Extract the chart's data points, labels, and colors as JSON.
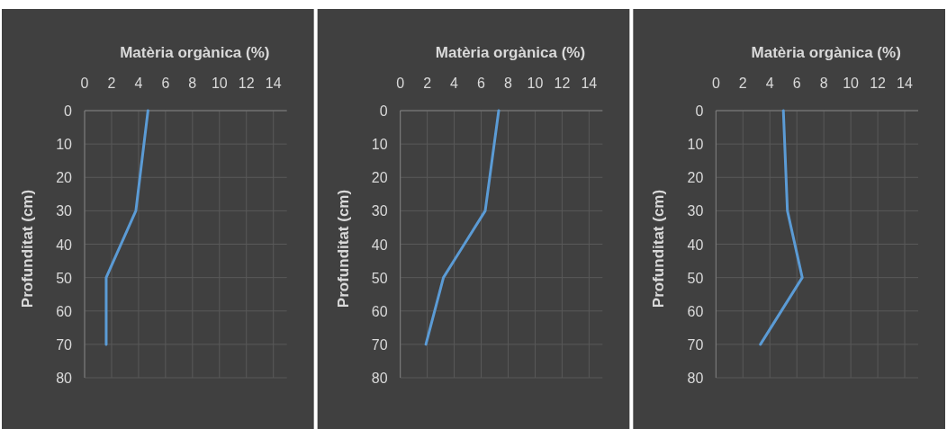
{
  "chart_data": [
    {
      "type": "line",
      "xlabel": "Matèria orgànica (%)",
      "ylabel": "Profunditat (cm)",
      "xlim": [
        0,
        15
      ],
      "xticks": [
        0,
        2,
        4,
        6,
        8,
        10,
        12,
        14
      ],
      "ylim": [
        80,
        0
      ],
      "yticks": [
        0,
        10,
        20,
        30,
        40,
        50,
        60,
        70,
        80
      ],
      "grid": true,
      "series": [
        {
          "color": "#5b9bd5",
          "x": [
            4.7,
            3.8,
            1.6,
            1.6
          ],
          "values": [
            0,
            30,
            50,
            70
          ]
        }
      ]
    },
    {
      "type": "line",
      "xlabel": "Matèria orgànica (%)",
      "ylabel": "Profunditat (cm)",
      "xlim": [
        0,
        15
      ],
      "xticks": [
        0,
        2,
        4,
        6,
        8,
        10,
        12,
        14
      ],
      "ylim": [
        80,
        0
      ],
      "yticks": [
        0,
        10,
        20,
        30,
        40,
        50,
        60,
        70,
        80
      ],
      "grid": true,
      "series": [
        {
          "color": "#5b9bd5",
          "x": [
            7.3,
            6.3,
            3.2,
            1.9
          ],
          "values": [
            0,
            30,
            50,
            70
          ]
        }
      ]
    },
    {
      "type": "line",
      "xlabel": "Matèria orgànica (%)",
      "ylabel": "Profunditat (cm)",
      "xlim": [
        0,
        15
      ],
      "xticks": [
        0,
        2,
        4,
        6,
        8,
        10,
        12,
        14
      ],
      "ylim": [
        80,
        0
      ],
      "yticks": [
        0,
        10,
        20,
        30,
        40,
        50,
        60,
        70,
        80
      ],
      "grid": true,
      "series": [
        {
          "color": "#5b9bd5",
          "x": [
            5.0,
            5.3,
            6.4,
            3.3
          ],
          "values": [
            0,
            30,
            50,
            70
          ]
        }
      ]
    }
  ]
}
